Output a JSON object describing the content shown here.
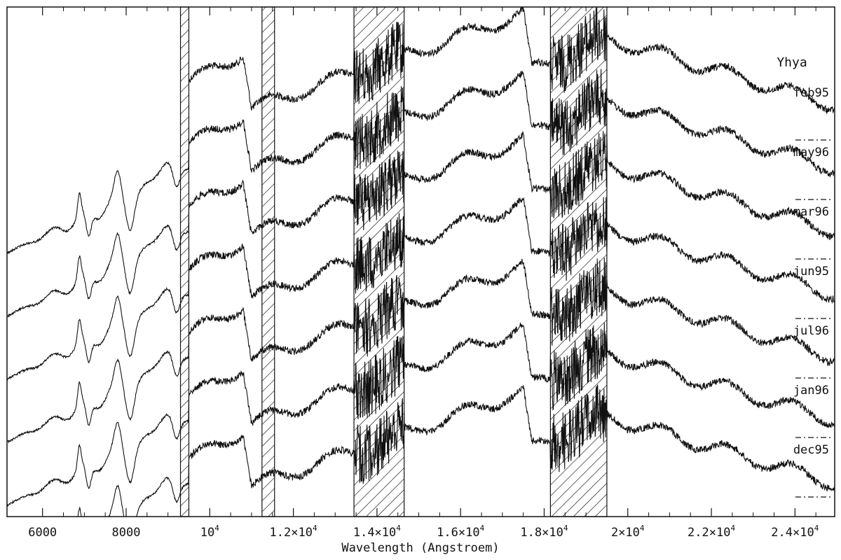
{
  "chart_data": {
    "type": "line",
    "title": "Yhya",
    "xlabel": "Wavelength (Angstroem)",
    "ylabel": "",
    "xlim": [
      5150,
      24950
    ],
    "xticks": [
      {
        "value": 6000,
        "label": "6000"
      },
      {
        "value": 8000,
        "label": "8000"
      },
      {
        "value": 10000,
        "base": "10",
        "exp": "4"
      },
      {
        "value": 12000,
        "base": "1.2×10",
        "exp": "4"
      },
      {
        "value": 14000,
        "base": "1.4×10",
        "exp": "4"
      },
      {
        "value": 16000,
        "base": "1.6×10",
        "exp": "4"
      },
      {
        "value": 18000,
        "base": "1.8×10",
        "exp": "4"
      },
      {
        "value": 20000,
        "base": "2×10",
        "exp": "4"
      },
      {
        "value": 22000,
        "base": "2.2×10",
        "exp": "4"
      },
      {
        "value": 24000,
        "base": "2.4×10",
        "exp": "4"
      }
    ],
    "excluded_regions": [
      [
        9300,
        9500
      ],
      [
        11250,
        11550
      ],
      [
        13450,
        14650
      ],
      [
        18150,
        19500
      ]
    ],
    "series": [
      {
        "name": "feb95",
        "has_optical": false
      },
      {
        "name": "may96",
        "has_optical": true
      },
      {
        "name": "mar96",
        "has_optical": true
      },
      {
        "name": "jun95",
        "has_optical": true
      },
      {
        "name": "jul96",
        "has_optical": true
      },
      {
        "name": "jan96",
        "has_optical": true
      },
      {
        "name": "dec95",
        "has_optical": true
      }
    ],
    "grid": false,
    "legend": "right, series labels"
  },
  "colors": {
    "line": "#111111",
    "hatch": "#111111",
    "background": "#ffffff"
  }
}
